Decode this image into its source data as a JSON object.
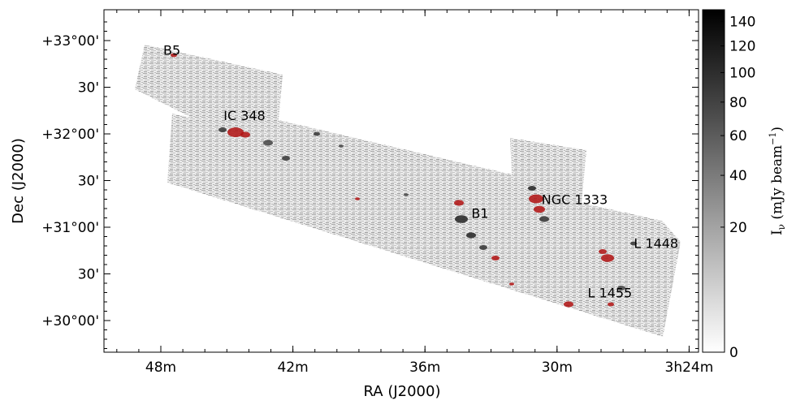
{
  "chart_data": {
    "type": "heatmap",
    "xlabel": "RA (J2000)",
    "ylabel": "Dec (J2000)",
    "x_ticks": [
      "48m",
      "42m",
      "36m",
      "30m",
      "3h24m"
    ],
    "x_tick_values_min": [
      48,
      42,
      36,
      30,
      24
    ],
    "y_ticks": [
      "+33°00'",
      "30'",
      "+32°00'",
      "30'",
      "+31°00'",
      "30'",
      "+30°00'"
    ],
    "y_tick_values_deg": [
      33.0,
      32.5,
      32.0,
      31.5,
      31.0,
      30.5,
      30.0
    ],
    "colorbar": {
      "label": "Iν (mJy beam⁻¹)",
      "label_main": "I",
      "label_sub": "ν",
      "label_unit": " (mJy beam",
      "label_sup": "−1",
      "label_close": ")",
      "ticks": [
        "0",
        "20",
        "40",
        "60",
        "80",
        "100",
        "120",
        "140"
      ],
      "tick_values": [
        0,
        20,
        40,
        60,
        80,
        100,
        120,
        140
      ],
      "range": [
        0,
        150
      ],
      "scale": "sqrt",
      "colors": [
        "#ffffff",
        "#000000"
      ]
    },
    "regions": [
      {
        "name": "B5",
        "ra_min": 47.5,
        "dec": 32.85
      },
      {
        "name": "IC 348",
        "ra_min": 44.2,
        "dec": 32.15
      },
      {
        "name": "NGC 1333",
        "ra_min": 29.2,
        "dec": 31.25
      },
      {
        "name": "B1",
        "ra_min": 33.5,
        "dec": 31.1
      },
      {
        "name": "L 1448",
        "ra_min": 25.5,
        "dec": 30.78
      },
      {
        "name": "L 1455",
        "ra_min": 27.6,
        "dec": 30.25
      }
    ],
    "overlay_color": "#b01010",
    "map_color": "#808080"
  }
}
